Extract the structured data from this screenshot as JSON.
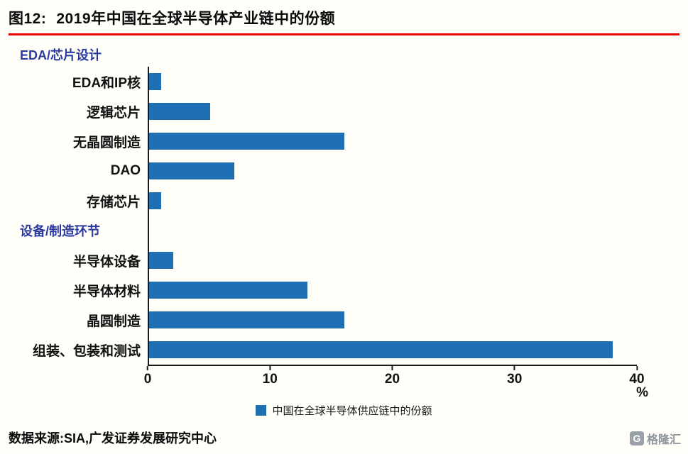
{
  "title": {
    "prefix": "图12:",
    "text": "2019年中国在全球半导体产业链中的份额"
  },
  "accent_colors": {
    "title_rule_red": "#E60000",
    "section_blue": "#2B3A9E"
  },
  "chart_data": {
    "type": "bar",
    "orientation": "horizontal",
    "title": "2019年中国在全球半导体产业链中的份额",
    "xlim": [
      0,
      40
    ],
    "xticks": [
      "0",
      "10",
      "20",
      "30",
      "40"
    ],
    "unit_label": "%",
    "legend": "中国在全球半导体供应链中的份额",
    "colors": {
      "bar": "#1F6FB5"
    },
    "groups": [
      {
        "label": "EDA/芯片设计",
        "items": [
          {
            "category": "EDA和IP核",
            "value": 1
          },
          {
            "category": "逻辑芯片",
            "value": 5
          },
          {
            "category": "无晶圆制造",
            "value": 16
          },
          {
            "category": "DAO",
            "value": 7
          },
          {
            "category": "存储芯片",
            "value": 1
          }
        ]
      },
      {
        "label": "设备/制造环节",
        "items": [
          {
            "category": "半导体设备",
            "value": 2
          },
          {
            "category": "半导体材料",
            "value": 13
          },
          {
            "category": "晶圆制造",
            "value": 16
          },
          {
            "category": "组装、包装和测试",
            "value": 38
          }
        ]
      }
    ]
  },
  "footer": {
    "source": "数据来源:SIA,广发证券发展研究中心"
  },
  "watermark": {
    "icon": "gelonghui-logo",
    "glyph": "G",
    "text": "格隆汇"
  }
}
